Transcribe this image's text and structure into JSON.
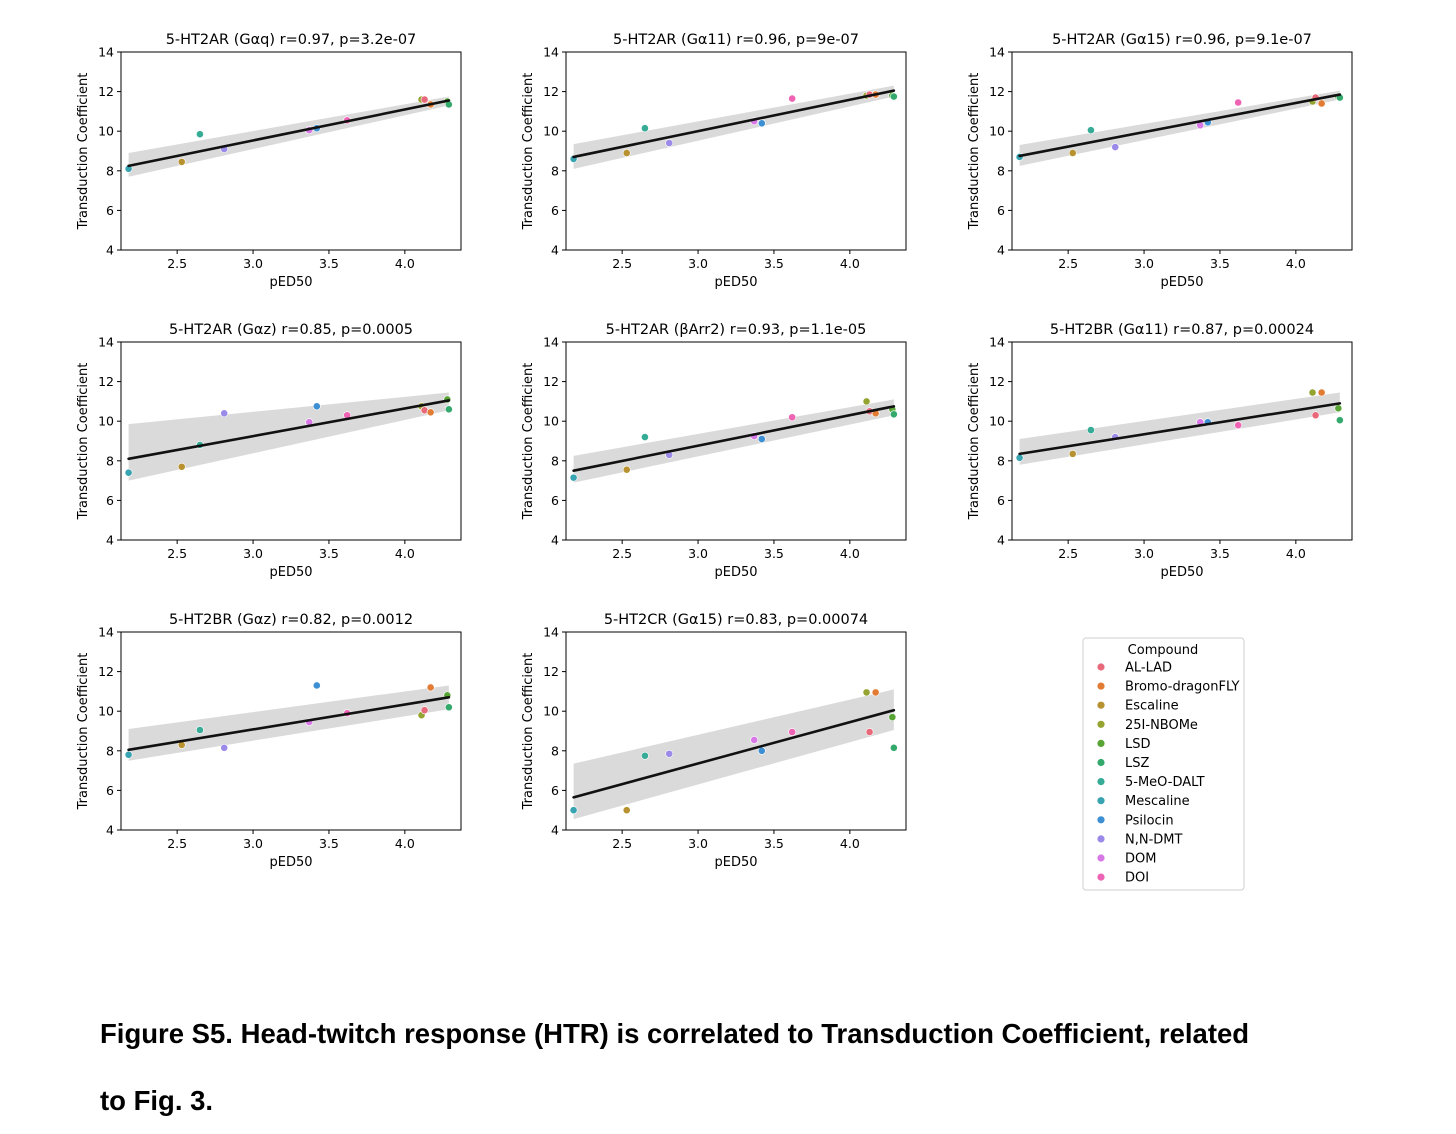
{
  "compounds": [
    {
      "name": "AL-LAD",
      "color": "#e8697a"
    },
    {
      "name": "Bromo-dragonFLY",
      "color": "#e27c34"
    },
    {
      "name": "Escaline",
      "color": "#b89231"
    },
    {
      "name": "25I-NBOMe",
      "color": "#95a331"
    },
    {
      "name": "LSD",
      "color": "#58a535"
    },
    {
      "name": "LSZ",
      "color": "#34a96c"
    },
    {
      "name": "5-MeO-DALT",
      "color": "#36ab96"
    },
    {
      "name": "Mescaline",
      "color": "#38a4b2"
    },
    {
      "name": "Psilocin",
      "color": "#3d8fd3"
    },
    {
      "name": "N,N-DMT",
      "color": "#9c8ae8"
    },
    {
      "name": "DOM",
      "color": "#d877e6"
    },
    {
      "name": "DOI",
      "color": "#ef63b4"
    }
  ],
  "legend": {
    "title": "Compound"
  },
  "caption": {
    "line1": "Figure S5. Head-twitch response (HTR) is correlated to Transduction Coefficient, related",
    "line2": "to Fig. 3."
  },
  "chart_data": [
    {
      "type": "scatter",
      "title": "5-HT2AR (Gαq) r=0.97, p=3.2e-07",
      "xlabel": "pED50",
      "ylabel": "Transduction Coefficient",
      "xlim": [
        2.13,
        4.37
      ],
      "ylim": [
        4,
        14
      ],
      "xticks": [
        "2.5",
        "3.0",
        "3.5",
        "4.0"
      ],
      "yticks": [
        "4",
        "6",
        "8",
        "10",
        "12",
        "14"
      ],
      "points": [
        {
          "c": "Mescaline",
          "x": 2.18,
          "y": 8.1
        },
        {
          "c": "Escaline",
          "x": 2.53,
          "y": 8.45
        },
        {
          "c": "5-MeO-DALT",
          "x": 2.65,
          "y": 9.85
        },
        {
          "c": "N,N-DMT",
          "x": 2.81,
          "y": 9.1
        },
        {
          "c": "DOM",
          "x": 3.37,
          "y": 10.05
        },
        {
          "c": "Psilocin",
          "x": 3.42,
          "y": 10.15
        },
        {
          "c": "DOI",
          "x": 3.62,
          "y": 10.55
        },
        {
          "c": "25I-NBOMe",
          "x": 4.11,
          "y": 11.6
        },
        {
          "c": "AL-LAD",
          "x": 4.13,
          "y": 11.6
        },
        {
          "c": "Bromo-dragonFLY",
          "x": 4.17,
          "y": 11.35
        },
        {
          "c": "LSD",
          "x": 4.28,
          "y": 11.5
        },
        {
          "c": "LSZ",
          "x": 4.29,
          "y": 11.35
        }
      ],
      "fit": {
        "x": [
          2.18,
          4.29
        ],
        "y": [
          8.25,
          11.55
        ]
      },
      "band": {
        "upper": [
          8.9,
          11.75
        ],
        "lower": [
          7.7,
          11.3
        ]
      }
    },
    {
      "type": "scatter",
      "title": "5-HT2AR (Gα11) r=0.96, p=9e-07",
      "xlabel": "pED50",
      "ylabel": "Transduction Coefficient",
      "xlim": [
        2.13,
        4.37
      ],
      "ylim": [
        4,
        14
      ],
      "xticks": [
        "2.5",
        "3.0",
        "3.5",
        "4.0"
      ],
      "yticks": [
        "4",
        "6",
        "8",
        "10",
        "12",
        "14"
      ],
      "points": [
        {
          "c": "Mescaline",
          "x": 2.18,
          "y": 8.6
        },
        {
          "c": "Escaline",
          "x": 2.53,
          "y": 8.9
        },
        {
          "c": "5-MeO-DALT",
          "x": 2.65,
          "y": 10.15
        },
        {
          "c": "N,N-DMT",
          "x": 2.81,
          "y": 9.4
        },
        {
          "c": "DOM",
          "x": 3.37,
          "y": 10.5
        },
        {
          "c": "Psilocin",
          "x": 3.42,
          "y": 10.4
        },
        {
          "c": "DOI",
          "x": 3.62,
          "y": 11.65
        },
        {
          "c": "25I-NBOMe",
          "x": 4.11,
          "y": 11.8
        },
        {
          "c": "AL-LAD",
          "x": 4.13,
          "y": 11.85
        },
        {
          "c": "Bromo-dragonFLY",
          "x": 4.17,
          "y": 11.85
        },
        {
          "c": "LSD",
          "x": 4.28,
          "y": 11.8
        },
        {
          "c": "LSZ",
          "x": 4.29,
          "y": 11.75
        }
      ],
      "fit": {
        "x": [
          2.18,
          4.29
        ],
        "y": [
          8.7,
          12.05
        ]
      },
      "band": {
        "upper": [
          9.35,
          12.3
        ],
        "lower": [
          8.1,
          11.75
        ]
      }
    },
    {
      "type": "scatter",
      "title": "5-HT2AR (Gα15) r=0.96, p=9.1e-07",
      "xlabel": "pED50",
      "ylabel": "Transduction Coefficient",
      "xlim": [
        2.13,
        4.37
      ],
      "ylim": [
        4,
        14
      ],
      "xticks": [
        "2.5",
        "3.0",
        "3.5",
        "4.0"
      ],
      "yticks": [
        "4",
        "6",
        "8",
        "10",
        "12",
        "14"
      ],
      "points": [
        {
          "c": "Mescaline",
          "x": 2.18,
          "y": 8.7
        },
        {
          "c": "Escaline",
          "x": 2.53,
          "y": 8.9
        },
        {
          "c": "5-MeO-DALT",
          "x": 2.65,
          "y": 10.05
        },
        {
          "c": "N,N-DMT",
          "x": 2.81,
          "y": 9.2
        },
        {
          "c": "DOM",
          "x": 3.37,
          "y": 10.3
        },
        {
          "c": "Psilocin",
          "x": 3.42,
          "y": 10.45
        },
        {
          "c": "DOI",
          "x": 3.62,
          "y": 11.45
        },
        {
          "c": "25I-NBOMe",
          "x": 4.11,
          "y": 11.5
        },
        {
          "c": "AL-LAD",
          "x": 4.13,
          "y": 11.7
        },
        {
          "c": "Bromo-dragonFLY",
          "x": 4.17,
          "y": 11.4
        },
        {
          "c": "LSD",
          "x": 4.28,
          "y": 11.75
        },
        {
          "c": "LSZ",
          "x": 4.29,
          "y": 11.7
        }
      ],
      "fit": {
        "x": [
          2.18,
          4.29
        ],
        "y": [
          8.75,
          11.85
        ]
      },
      "band": {
        "upper": [
          9.3,
          12.05
        ],
        "lower": [
          8.25,
          11.6
        ]
      }
    },
    {
      "type": "scatter",
      "title": "5-HT2AR (Gαz) r=0.85, p=0.0005",
      "xlabel": "pED50",
      "ylabel": "Transduction Coefficient",
      "xlim": [
        2.13,
        4.37
      ],
      "ylim": [
        4,
        14
      ],
      "xticks": [
        "2.5",
        "3.0",
        "3.5",
        "4.0"
      ],
      "yticks": [
        "4",
        "6",
        "8",
        "10",
        "12",
        "14"
      ],
      "points": [
        {
          "c": "Mescaline",
          "x": 2.18,
          "y": 7.4
        },
        {
          "c": "Escaline",
          "x": 2.53,
          "y": 7.7
        },
        {
          "c": "5-MeO-DALT",
          "x": 2.65,
          "y": 8.8
        },
        {
          "c": "N,N-DMT",
          "x": 2.81,
          "y": 10.4
        },
        {
          "c": "DOM",
          "x": 3.37,
          "y": 9.95
        },
        {
          "c": "Psilocin",
          "x": 3.42,
          "y": 10.75
        },
        {
          "c": "DOI",
          "x": 3.62,
          "y": 10.3
        },
        {
          "c": "25I-NBOMe",
          "x": 4.11,
          "y": 10.75
        },
        {
          "c": "AL-LAD",
          "x": 4.13,
          "y": 10.55
        },
        {
          "c": "Bromo-dragonFLY",
          "x": 4.17,
          "y": 10.45
        },
        {
          "c": "LSD",
          "x": 4.28,
          "y": 11.1
        },
        {
          "c": "LSZ",
          "x": 4.29,
          "y": 10.6
        }
      ],
      "fit": {
        "x": [
          2.18,
          4.29
        ],
        "y": [
          8.1,
          11.05
        ]
      },
      "band": {
        "upper": [
          9.85,
          11.45
        ],
        "lower": [
          7.0,
          10.55
        ]
      }
    },
    {
      "type": "scatter",
      "title": "5-HT2AR (βArr2) r=0.93, p=1.1e-05",
      "xlabel": "pED50",
      "ylabel": "Transduction Coefficient",
      "xlim": [
        2.13,
        4.37
      ],
      "ylim": [
        4,
        14
      ],
      "xticks": [
        "2.5",
        "3.0",
        "3.5",
        "4.0"
      ],
      "yticks": [
        "4",
        "6",
        "8",
        "10",
        "12",
        "14"
      ],
      "points": [
        {
          "c": "Mescaline",
          "x": 2.18,
          "y": 7.15
        },
        {
          "c": "Escaline",
          "x": 2.53,
          "y": 7.55
        },
        {
          "c": "5-MeO-DALT",
          "x": 2.65,
          "y": 9.2
        },
        {
          "c": "N,N-DMT",
          "x": 2.81,
          "y": 8.3
        },
        {
          "c": "DOM",
          "x": 3.37,
          "y": 9.25
        },
        {
          "c": "Psilocin",
          "x": 3.42,
          "y": 9.1
        },
        {
          "c": "DOI",
          "x": 3.62,
          "y": 10.2
        },
        {
          "c": "25I-NBOMe",
          "x": 4.11,
          "y": 11.0
        },
        {
          "c": "AL-LAD",
          "x": 4.13,
          "y": 10.5
        },
        {
          "c": "Bromo-dragonFLY",
          "x": 4.17,
          "y": 10.4
        },
        {
          "c": "LSD",
          "x": 4.28,
          "y": 10.6
        },
        {
          "c": "LSZ",
          "x": 4.29,
          "y": 10.35
        }
      ],
      "fit": {
        "x": [
          2.18,
          4.29
        ],
        "y": [
          7.5,
          10.75
        ]
      },
      "band": {
        "upper": [
          8.25,
          11.1
        ],
        "lower": [
          6.9,
          10.3
        ]
      }
    },
    {
      "type": "scatter",
      "title": "5-HT2BR (Gα11) r=0.87, p=0.00024",
      "xlabel": "pED50",
      "ylabel": "Transduction Coefficient",
      "xlim": [
        2.13,
        4.37
      ],
      "ylim": [
        4,
        14
      ],
      "xticks": [
        "2.5",
        "3.0",
        "3.5",
        "4.0"
      ],
      "yticks": [
        "4",
        "6",
        "8",
        "10",
        "12",
        "14"
      ],
      "points": [
        {
          "c": "Mescaline",
          "x": 2.18,
          "y": 8.15
        },
        {
          "c": "Escaline",
          "x": 2.53,
          "y": 8.35
        },
        {
          "c": "5-MeO-DALT",
          "x": 2.65,
          "y": 9.55
        },
        {
          "c": "N,N-DMT",
          "x": 2.81,
          "y": 9.2
        },
        {
          "c": "DOM",
          "x": 3.37,
          "y": 9.95
        },
        {
          "c": "Psilocin",
          "x": 3.42,
          "y": 9.95
        },
        {
          "c": "DOI",
          "x": 3.62,
          "y": 9.8
        },
        {
          "c": "25I-NBOMe",
          "x": 4.11,
          "y": 11.45
        },
        {
          "c": "AL-LAD",
          "x": 4.13,
          "y": 10.3
        },
        {
          "c": "Bromo-dragonFLY",
          "x": 4.17,
          "y": 11.45
        },
        {
          "c": "LSD",
          "x": 4.28,
          "y": 10.65
        },
        {
          "c": "LSZ",
          "x": 4.29,
          "y": 10.05
        }
      ],
      "fit": {
        "x": [
          2.18,
          4.29
        ],
        "y": [
          8.35,
          10.9
        ]
      },
      "band": {
        "upper": [
          9.1,
          11.45
        ],
        "lower": [
          7.8,
          10.45
        ]
      }
    },
    {
      "type": "scatter",
      "title": "5-HT2BR (Gαz) r=0.82, p=0.0012",
      "xlabel": "pED50",
      "ylabel": "Transduction Coefficient",
      "xlim": [
        2.13,
        4.37
      ],
      "ylim": [
        4,
        14
      ],
      "xticks": [
        "2.5",
        "3.0",
        "3.5",
        "4.0"
      ],
      "yticks": [
        "4",
        "6",
        "8",
        "10",
        "12",
        "14"
      ],
      "points": [
        {
          "c": "Mescaline",
          "x": 2.18,
          "y": 7.8
        },
        {
          "c": "Escaline",
          "x": 2.53,
          "y": 8.3
        },
        {
          "c": "5-MeO-DALT",
          "x": 2.65,
          "y": 9.05
        },
        {
          "c": "N,N-DMT",
          "x": 2.81,
          "y": 8.15
        },
        {
          "c": "DOM",
          "x": 3.37,
          "y": 9.45
        },
        {
          "c": "Psilocin",
          "x": 3.42,
          "y": 11.3
        },
        {
          "c": "DOI",
          "x": 3.62,
          "y": 9.9
        },
        {
          "c": "25I-NBOMe",
          "x": 4.11,
          "y": 9.8
        },
        {
          "c": "AL-LAD",
          "x": 4.13,
          "y": 10.05
        },
        {
          "c": "Bromo-dragonFLY",
          "x": 4.17,
          "y": 11.2
        },
        {
          "c": "LSD",
          "x": 4.28,
          "y": 10.8
        },
        {
          "c": "LSZ",
          "x": 4.29,
          "y": 10.2
        }
      ],
      "fit": {
        "x": [
          2.18,
          4.29
        ],
        "y": [
          8.05,
          10.7
        ]
      },
      "band": {
        "upper": [
          9.1,
          11.3
        ],
        "lower": [
          7.5,
          10.1
        ]
      }
    },
    {
      "type": "scatter",
      "title": "5-HT2CR (Gα15) r=0.83, p=0.00074",
      "xlabel": "pED50",
      "ylabel": "Transduction Coefficient",
      "xlim": [
        2.13,
        4.37
      ],
      "ylim": [
        4,
        14
      ],
      "xticks": [
        "2.5",
        "3.0",
        "3.5",
        "4.0"
      ],
      "yticks": [
        "4",
        "6",
        "8",
        "10",
        "12",
        "14"
      ],
      "points": [
        {
          "c": "Mescaline",
          "x": 2.18,
          "y": 5.0
        },
        {
          "c": "Escaline",
          "x": 2.53,
          "y": 5.0
        },
        {
          "c": "5-MeO-DALT",
          "x": 2.65,
          "y": 7.75
        },
        {
          "c": "N,N-DMT",
          "x": 2.81,
          "y": 7.85
        },
        {
          "c": "DOM",
          "x": 3.37,
          "y": 8.55
        },
        {
          "c": "Psilocin",
          "x": 3.42,
          "y": 8.0
        },
        {
          "c": "DOI",
          "x": 3.62,
          "y": 8.95
        },
        {
          "c": "25I-NBOMe",
          "x": 4.11,
          "y": 10.95
        },
        {
          "c": "AL-LAD",
          "x": 4.13,
          "y": 8.95
        },
        {
          "c": "Bromo-dragonFLY",
          "x": 4.17,
          "y": 10.95
        },
        {
          "c": "LSD",
          "x": 4.28,
          "y": 9.7
        },
        {
          "c": "LSZ",
          "x": 4.29,
          "y": 8.15
        }
      ],
      "fit": {
        "x": [
          2.18,
          4.29
        ],
        "y": [
          5.65,
          10.05
        ]
      },
      "band": {
        "upper": [
          7.35,
          11.1
        ],
        "lower": [
          4.55,
          9.05
        ]
      }
    }
  ]
}
